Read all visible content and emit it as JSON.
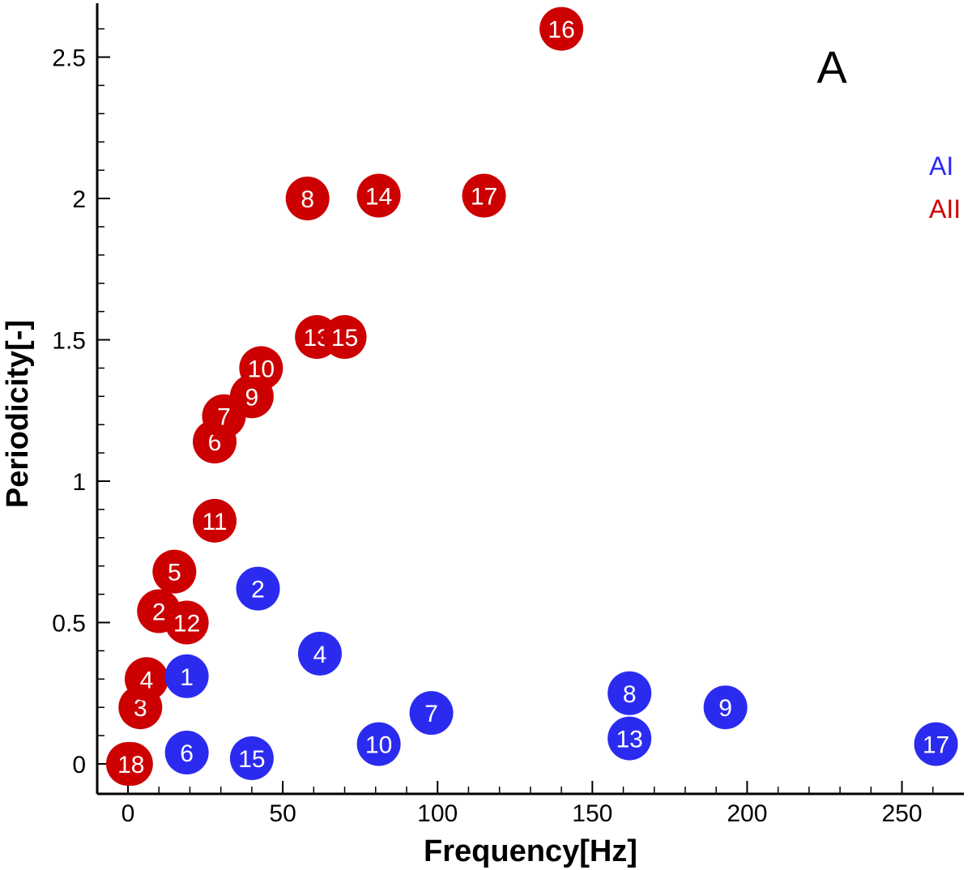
{
  "chart_data": {
    "type": "scatter",
    "panel_label": "A",
    "xlabel": "Frequency[Hz]",
    "ylabel": "Periodicity[-]",
    "xlim": [
      -10,
      270
    ],
    "ylim": [
      -0.08,
      2.7
    ],
    "x_ticks": [
      0,
      50,
      100,
      150,
      200,
      250
    ],
    "x_tick_labels": [
      "0",
      "50",
      "100",
      "150",
      "200",
      "250"
    ],
    "y_ticks": [
      0,
      0.5,
      1,
      1.5,
      2,
      2.5
    ],
    "y_tick_labels": [
      "0",
      "0.5",
      "1",
      "1.5",
      "2",
      "2.5"
    ],
    "grid": false,
    "legend_position": "right",
    "series": [
      {
        "name": "AI",
        "color": "#2b2bf0",
        "points": [
          {
            "label": "1",
            "x": 19,
            "y": 0.31
          },
          {
            "label": "2",
            "x": 42,
            "y": 0.62
          },
          {
            "label": "4",
            "x": 62,
            "y": 0.39
          },
          {
            "label": "6",
            "x": 19,
            "y": 0.04
          },
          {
            "label": "7",
            "x": 98,
            "y": 0.18
          },
          {
            "label": "8",
            "x": 162,
            "y": 0.25
          },
          {
            "label": "9",
            "x": 193,
            "y": 0.2
          },
          {
            "label": "10",
            "x": 81,
            "y": 0.07
          },
          {
            "label": "13",
            "x": 162,
            "y": 0.09
          },
          {
            "label": "15",
            "x": 40,
            "y": 0.02
          },
          {
            "label": "17",
            "x": 261,
            "y": 0.07
          }
        ]
      },
      {
        "name": "AII",
        "color": "#cc0000",
        "points": [
          {
            "label": "3",
            "x": 4,
            "y": 0.2
          },
          {
            "label": "4",
            "x": 6,
            "y": 0.3
          },
          {
            "label": "2",
            "x": 10,
            "y": 0.54
          },
          {
            "label": "12",
            "x": 19,
            "y": 0.5
          },
          {
            "label": "5",
            "x": 15,
            "y": 0.68
          },
          {
            "label": "11",
            "x": 28,
            "y": 0.86
          },
          {
            "label": "6",
            "x": 28,
            "y": 1.14
          },
          {
            "label": "7",
            "x": 31,
            "y": 1.23
          },
          {
            "label": "9",
            "x": 40,
            "y": 1.3
          },
          {
            "label": "10",
            "x": 43,
            "y": 1.4
          },
          {
            "label": "13",
            "x": 61,
            "y": 1.51
          },
          {
            "label": "15",
            "x": 70,
            "y": 1.51
          },
          {
            "label": "8",
            "x": 58,
            "y": 2.0
          },
          {
            "label": "14",
            "x": 81,
            "y": 2.01
          },
          {
            "label": "17",
            "x": 115,
            "y": 2.01
          },
          {
            "label": "16",
            "x": 140,
            "y": 2.6
          },
          {
            "label": "1",
            "x": 0,
            "y": 0.0
          },
          {
            "label": "18",
            "x": 1,
            "y": 0.0
          }
        ]
      }
    ]
  }
}
